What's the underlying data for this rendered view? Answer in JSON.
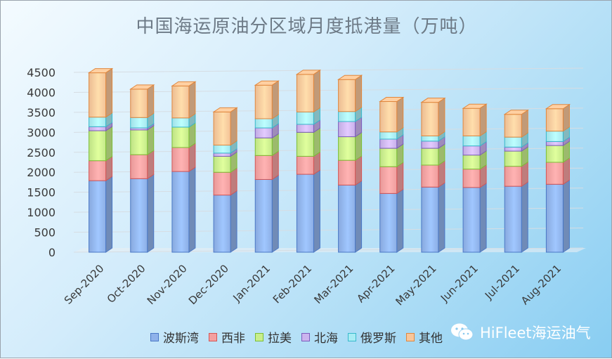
{
  "chart_data": {
    "type": "bar",
    "stacked": true,
    "title": "中国海运原油分区域月度抵港量（万吨）",
    "categories": [
      "Sep-2020",
      "Oct-2020",
      "Nov-2020",
      "Dec-2020",
      "Jan-2021",
      "Feb-2021",
      "Mar-2021",
      "Apr-2021",
      "May-2021",
      "Jun-2021",
      "Jul-2021",
      "Aug-2021"
    ],
    "ylim": [
      0,
      4500
    ],
    "yticks": [
      0,
      500,
      1000,
      1500,
      2000,
      2500,
      3000,
      3500,
      4000,
      4500
    ],
    "grid": true,
    "legend_position": "bottom",
    "series": [
      {
        "name": "波斯湾",
        "color": "#8fb2ea",
        "values": [
          1790,
          1840,
          2020,
          1430,
          1820,
          1950,
          1680,
          1470,
          1630,
          1620,
          1650,
          1700
        ]
      },
      {
        "name": "西非",
        "color": "#f4a0a0",
        "values": [
          500,
          600,
          600,
          570,
          600,
          450,
          620,
          670,
          550,
          460,
          500,
          550
        ]
      },
      {
        "name": "拉美",
        "color": "#c8ee8c",
        "values": [
          750,
          620,
          510,
          400,
          440,
          600,
          590,
          460,
          420,
          350,
          380,
          420
        ]
      },
      {
        "name": "北海",
        "color": "#cbb4ee",
        "values": [
          100,
          50,
          0,
          80,
          250,
          200,
          380,
          230,
          180,
          230,
          100,
          100
        ]
      },
      {
        "name": "俄罗斯",
        "color": "#a8ecf4",
        "values": [
          240,
          260,
          230,
          200,
          230,
          310,
          250,
          180,
          130,
          250,
          250,
          260
        ]
      },
      {
        "name": "其他",
        "color": "#f8c69a",
        "values": [
          1110,
          710,
          800,
          830,
          840,
          940,
          800,
          760,
          840,
          690,
          570,
          560
        ]
      }
    ]
  },
  "watermark": "HiFleet海运油气",
  "watermark_icon": "wechat-icon"
}
